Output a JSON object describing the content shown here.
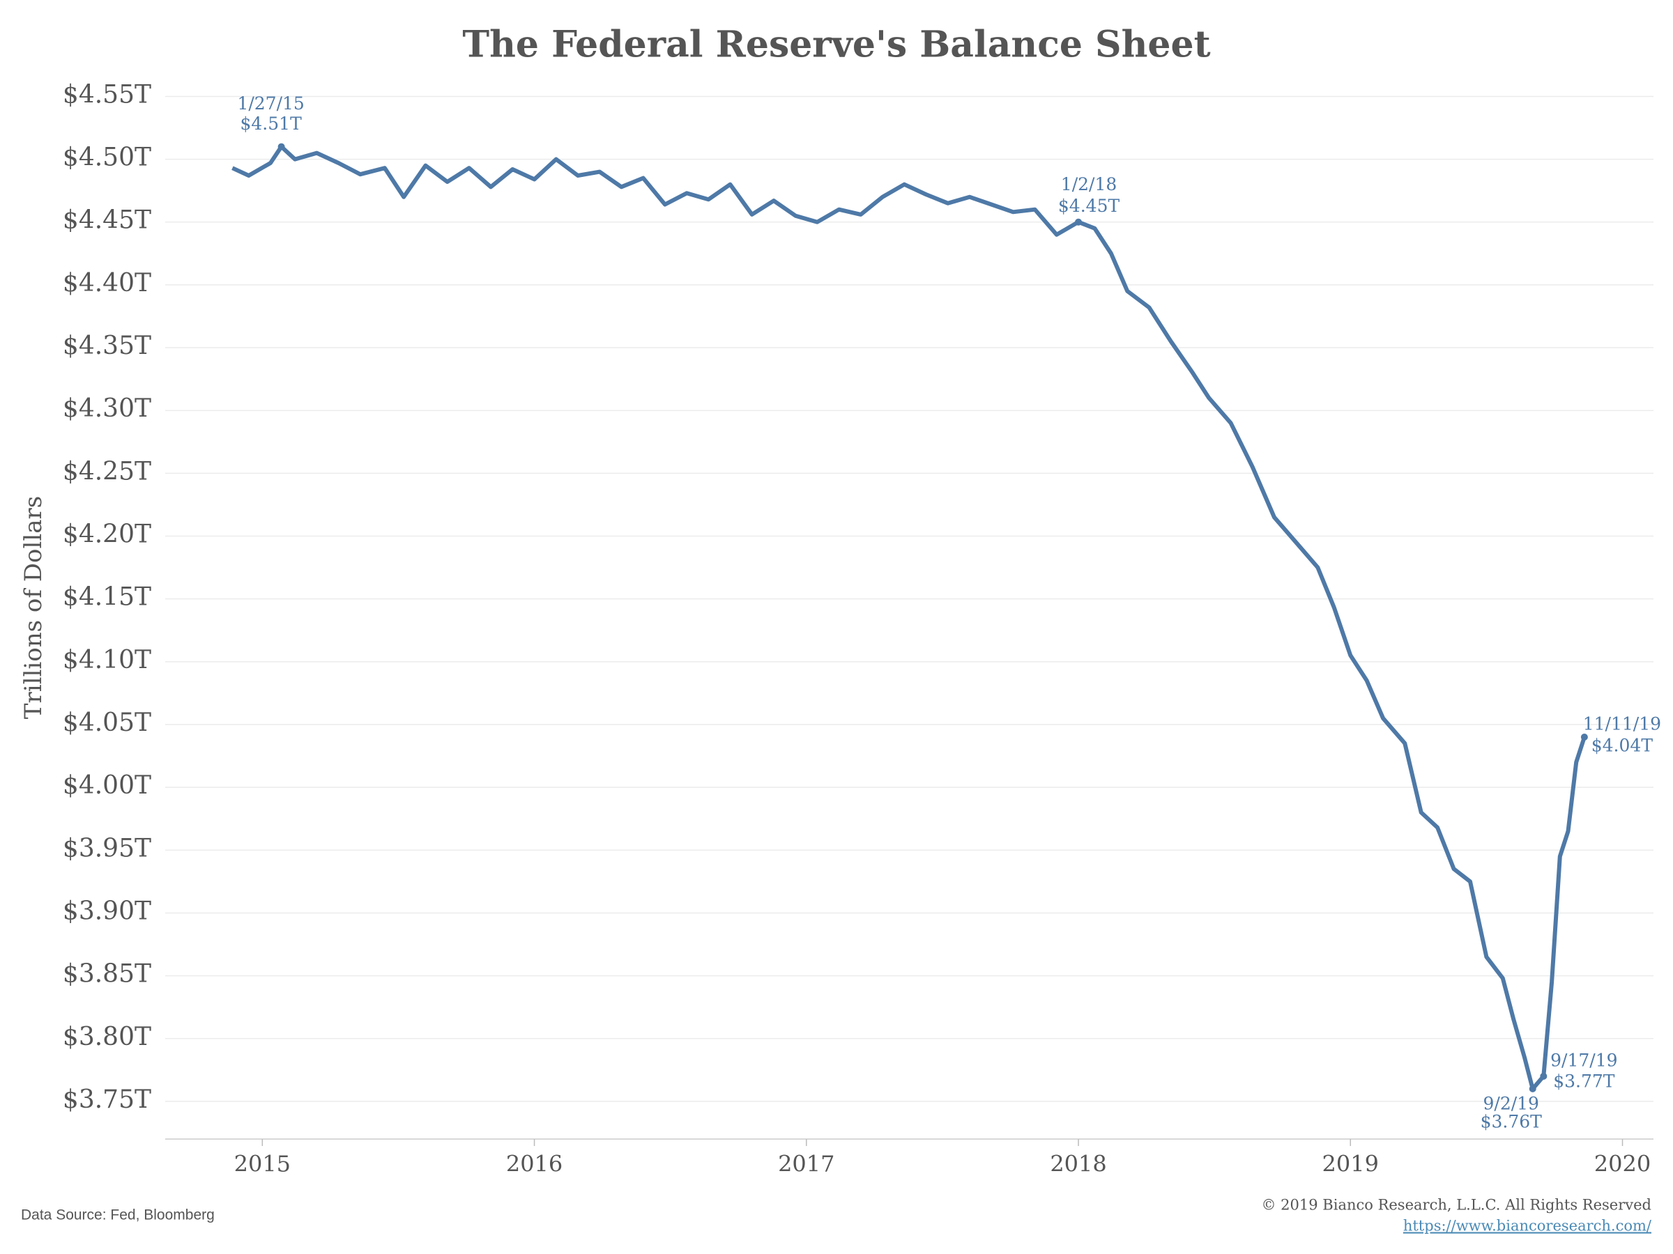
{
  "chart_data": {
    "type": "line",
    "title": "The Federal Reserve's Balance Sheet",
    "y_label": "Trillions of Dollars",
    "source": "Data Source: Fed, Bloomberg",
    "copyright": "© 2019 Bianco Research, L.L.C. All Rights Reserved",
    "url": "https://www.biancoresearch.com/",
    "color": "#4e79a7",
    "grid": true,
    "x": [
      2014.89,
      2014.95,
      2015.03,
      2015.07,
      2015.12,
      2015.2,
      2015.28,
      2015.36,
      2015.45,
      2015.52,
      2015.6,
      2015.68,
      2015.76,
      2015.84,
      2015.92,
      2016.0,
      2016.08,
      2016.16,
      2016.24,
      2016.32,
      2016.4,
      2016.48,
      2016.56,
      2016.64,
      2016.72,
      2016.8,
      2016.88,
      2016.96,
      2017.04,
      2017.12,
      2017.2,
      2017.28,
      2017.36,
      2017.44,
      2017.52,
      2017.6,
      2017.68,
      2017.76,
      2017.84,
      2017.92,
      2018.0,
      2018.06,
      2018.12,
      2018.18,
      2018.26,
      2018.34,
      2018.42,
      2018.48,
      2018.56,
      2018.64,
      2018.72,
      2018.8,
      2018.88,
      2018.94,
      2019.0,
      2019.06,
      2019.12,
      2019.2,
      2019.26,
      2019.32,
      2019.38,
      2019.44,
      2019.5,
      2019.56,
      2019.6,
      2019.64,
      2019.67,
      2019.71,
      2019.74,
      2019.77,
      2019.8,
      2019.83,
      2019.86
    ],
    "values": [
      4.493,
      4.487,
      4.497,
      4.51,
      4.5,
      4.505,
      4.497,
      4.488,
      4.493,
      4.47,
      4.495,
      4.482,
      4.493,
      4.478,
      4.492,
      4.484,
      4.5,
      4.487,
      4.49,
      4.478,
      4.485,
      4.464,
      4.473,
      4.468,
      4.48,
      4.456,
      4.467,
      4.455,
      4.45,
      4.46,
      4.456,
      4.47,
      4.48,
      4.472,
      4.465,
      4.47,
      4.464,
      4.458,
      4.46,
      4.44,
      4.45,
      4.445,
      4.425,
      4.395,
      4.382,
      4.355,
      4.33,
      4.31,
      4.29,
      4.255,
      4.215,
      4.195,
      4.175,
      4.143,
      4.105,
      4.085,
      4.055,
      4.035,
      3.98,
      3.968,
      3.935,
      3.925,
      3.865,
      3.848,
      3.815,
      3.785,
      3.76,
      3.77,
      3.845,
      3.945,
      3.965,
      4.02,
      4.04
    ],
    "xlim": [
      2014.643,
      2020.114
    ],
    "xticks": [
      2015,
      2016,
      2017,
      2018,
      2019,
      2020
    ],
    "ylim": [
      3.72,
      4.563
    ],
    "yticks": [
      {
        "value": 3.75,
        "label": "$3.75T"
      },
      {
        "value": 3.8,
        "label": "$3.80T"
      },
      {
        "value": 3.85,
        "label": "$3.85T"
      },
      {
        "value": 3.9,
        "label": "$3.90T"
      },
      {
        "value": 3.95,
        "label": "$3.95T"
      },
      {
        "value": 4.0,
        "label": "$4.00T"
      },
      {
        "value": 4.05,
        "label": "$4.05T"
      },
      {
        "value": 4.1,
        "label": "$4.10T"
      },
      {
        "value": 4.15,
        "label": "$4.15T"
      },
      {
        "value": 4.2,
        "label": "$4.20T"
      },
      {
        "value": 4.25,
        "label": "$4.25T"
      },
      {
        "value": 4.3,
        "label": "$4.30T"
      },
      {
        "value": 4.35,
        "label": "$4.35T"
      },
      {
        "value": 4.4,
        "label": "$4.40T"
      },
      {
        "value": 4.45,
        "label": "$4.45T"
      },
      {
        "value": 4.5,
        "label": "$4.50T"
      },
      {
        "value": 4.55,
        "label": "$4.55T"
      }
    ],
    "annotations": [
      {
        "date": "1/27/15",
        "label": "$4.51T",
        "x": 2015.07,
        "y": 4.51
      },
      {
        "date": "1/2/18",
        "label": "$4.45T",
        "x": 2018.0,
        "y": 4.45
      },
      {
        "date": "9/2/19",
        "label": "$3.76T",
        "x": 2019.67,
        "y": 3.76
      },
      {
        "date": "9/17/19",
        "label": "$3.77T",
        "x": 2019.71,
        "y": 3.77
      },
      {
        "date": "11/11/19",
        "label": "$4.04T",
        "x": 2019.86,
        "y": 4.04
      }
    ]
  }
}
